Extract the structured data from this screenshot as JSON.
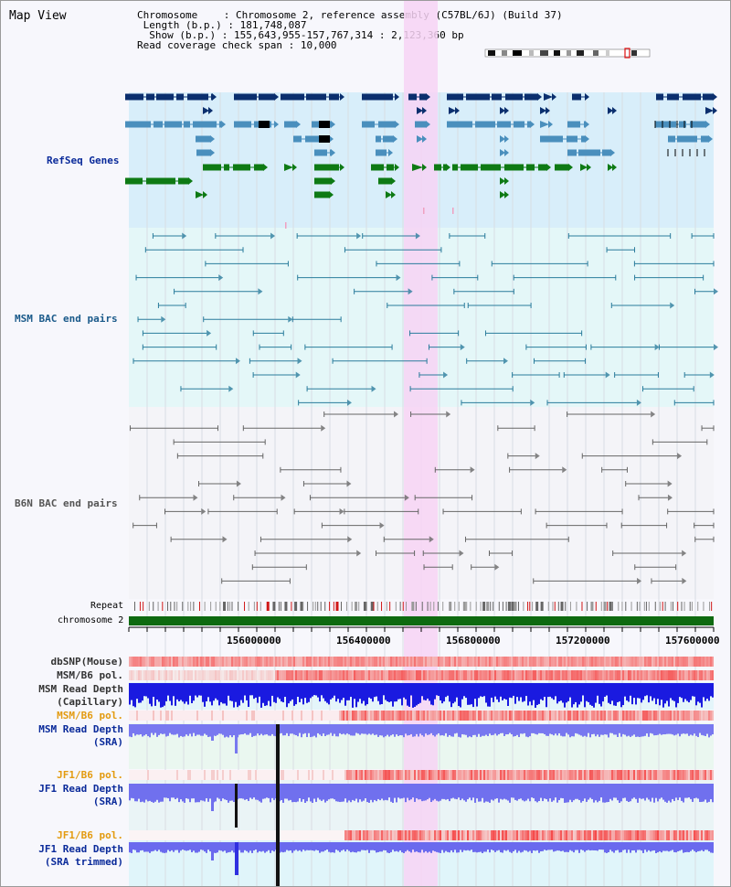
{
  "panel": {
    "title": "Map View"
  },
  "header": {
    "chromosome_key": "Chromosome",
    "chromosome_value": ": Chromosome 2, reference assembly (C57BL/6J) (Build 37)",
    "length_key": "Length (b.p.)",
    "length_value": ": 181,748,087",
    "show_key": "Show (b.p.)",
    "show_value": ": 155,643,955-157,767,314 : 2,123,360 bp",
    "coverage_key": "Read coverage check span",
    "coverage_value": ": 10,000"
  },
  "tracks": {
    "refseq": "RefSeq Genes",
    "msm_bac": "MSM BAC end pairs",
    "b6n_bac": "B6N BAC end pairs",
    "repeat": "Repeat",
    "chromosome": "chromosome 2",
    "dbsnp": "dbSNP(Mouse)",
    "msm_b6_pol_1": "MSM/B6 pol.",
    "msm_read_depth_cap_1": "MSM Read Depth",
    "msm_read_depth_cap_2": "(Capillary)",
    "msm_b6_pol_2": "MSM/B6 pol.",
    "msm_read_depth_sra_1": "MSM Read Depth",
    "msm_read_depth_sra_2": "(SRA)",
    "jf1_b6_pol_1": "JF1/B6 pol.",
    "jf1_read_depth_sra_1": "JF1 Read Depth",
    "jf1_read_depth_sra_2": "(SRA)",
    "jf1_b6_pol_2": "JF1/B6 pol.",
    "jf1_read_depth_trim_1": "JF1 Read Depth",
    "jf1_read_depth_trim_2": "(SRA trimmed)"
  },
  "axis": {
    "ticks": [
      "156000000",
      "156400000",
      "156800000",
      "157200000",
      "157600000"
    ]
  },
  "colors": {
    "refseq_bg": "#d8eefa",
    "msm_bg": "#e4f7f8",
    "b6n_bg": "#f4f4f8",
    "highlight": "#f7d4f4",
    "gene_navy": "#0b2f6e",
    "gene_steel": "#4a8fbd",
    "gene_green": "#0e7a14",
    "msm_pair": "#2a7c9c",
    "b6n_pair": "#666666",
    "chromosome_bar": "#0e6a10",
    "label_navy": "#0a2a9a",
    "label_teal": "#1a5a8a",
    "label_orange": "#e39b10"
  }
}
